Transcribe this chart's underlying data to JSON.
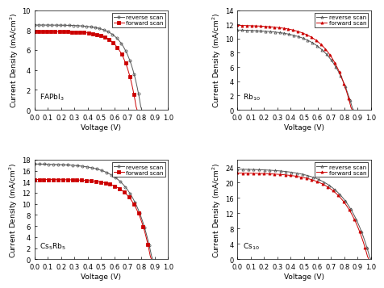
{
  "panels": [
    {
      "label": "FAPbI$_3$",
      "ylim": [
        0,
        10
      ],
      "yticks": [
        0,
        2,
        4,
        6,
        8,
        10
      ],
      "reverse_Jsc": 8.5,
      "reverse_Voc": 0.8,
      "forward_Jsc": 7.85,
      "forward_Voc": 0.765,
      "reverse_n": 3.8,
      "forward_n": 3.5,
      "marker_rev": "o",
      "marker_fwd": "s"
    },
    {
      "label": "Rb$_{10}$",
      "ylim": [
        0,
        14
      ],
      "yticks": [
        0,
        2,
        4,
        6,
        8,
        10,
        12,
        14
      ],
      "reverse_Jsc": 11.2,
      "reverse_Voc": 0.865,
      "forward_Jsc": 11.85,
      "forward_Voc": 0.855,
      "reverse_n": 6.5,
      "forward_n": 6.0,
      "marker_rev": "^",
      "marker_fwd": "^"
    },
    {
      "label": "Cs$_5$Rb$_5$",
      "ylim": [
        0,
        18
      ],
      "yticks": [
        0,
        2,
        4,
        6,
        8,
        10,
        12,
        14,
        16,
        18
      ],
      "reverse_Jsc": 17.2,
      "reverse_Voc": 0.882,
      "forward_Jsc": 14.4,
      "forward_Voc": 0.872,
      "reverse_n": 5.5,
      "forward_n": 4.2,
      "marker_rev": "o",
      "marker_fwd": "s"
    },
    {
      "label": "Cs$_{10}$",
      "ylim": [
        0,
        26
      ],
      "yticks": [
        0,
        4,
        8,
        12,
        16,
        20,
        24
      ],
      "reverse_Jsc": 23.5,
      "reverse_Voc": 0.995,
      "forward_Jsc": 22.5,
      "forward_Voc": 0.98,
      "reverse_n": 7.0,
      "forward_n": 6.5,
      "marker_rev": "^",
      "marker_fwd": "^"
    }
  ],
  "color_rev": "#555555",
  "color_fwd": "#cc0000",
  "xlabel": "Voltage (V)",
  "ylabel": "Current Density (mA/cm$^2$)",
  "xlim": [
    0.0,
    1.0
  ],
  "xticks": [
    0.0,
    0.1,
    0.2,
    0.3,
    0.4,
    0.5,
    0.6,
    0.7,
    0.8,
    0.9,
    1.0
  ],
  "legend_labels": [
    "reverse scan",
    "forward scan"
  ],
  "label_fontsize": 6.5,
  "tick_fontsize": 6.0
}
